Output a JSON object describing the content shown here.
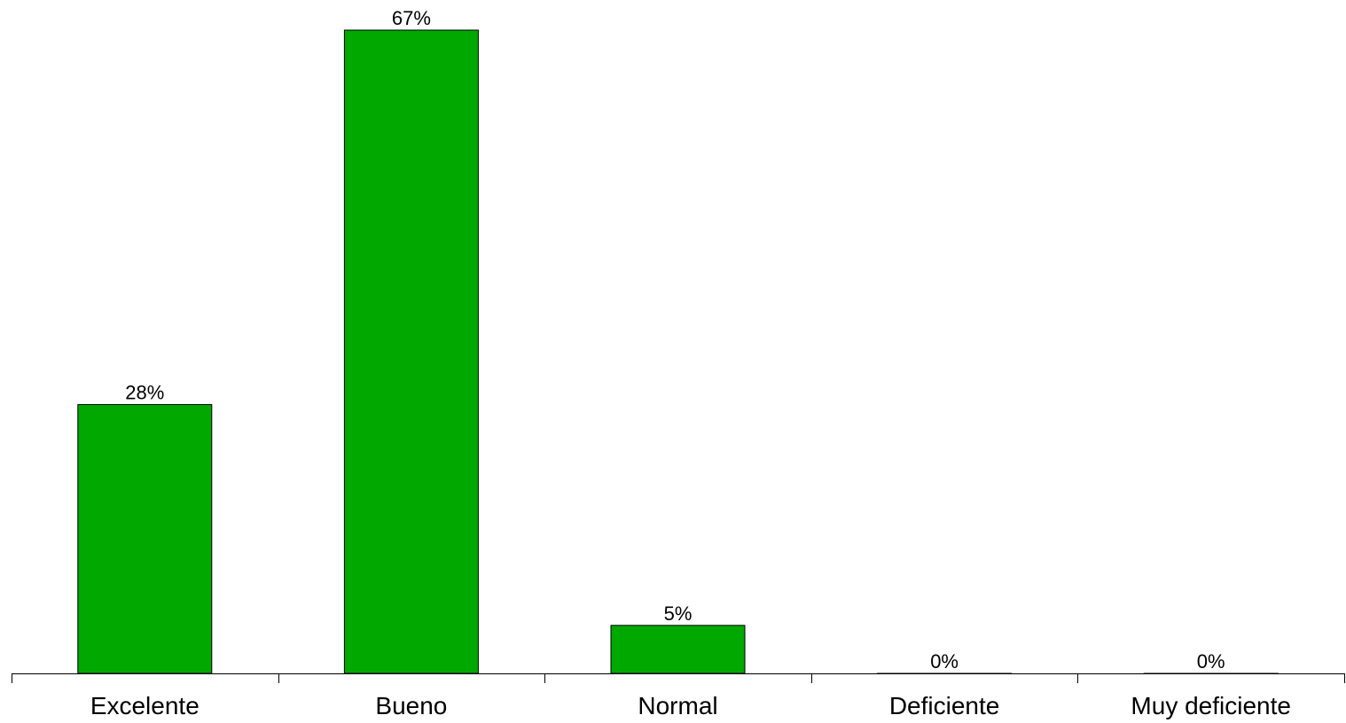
{
  "chart_data": {
    "type": "bar",
    "categories": [
      "Excelente",
      "Bueno",
      "Normal",
      "Deficiente",
      "Muy deficiente"
    ],
    "values": [
      28,
      67,
      5,
      0,
      0
    ],
    "data_labels": [
      "28%",
      "67%",
      "5%",
      "0%",
      "0%"
    ],
    "title": "",
    "xlabel": "",
    "ylabel": "",
    "ylim": [
      0,
      67
    ],
    "bar_color": "#00a800",
    "grid": false,
    "legend": "none"
  }
}
